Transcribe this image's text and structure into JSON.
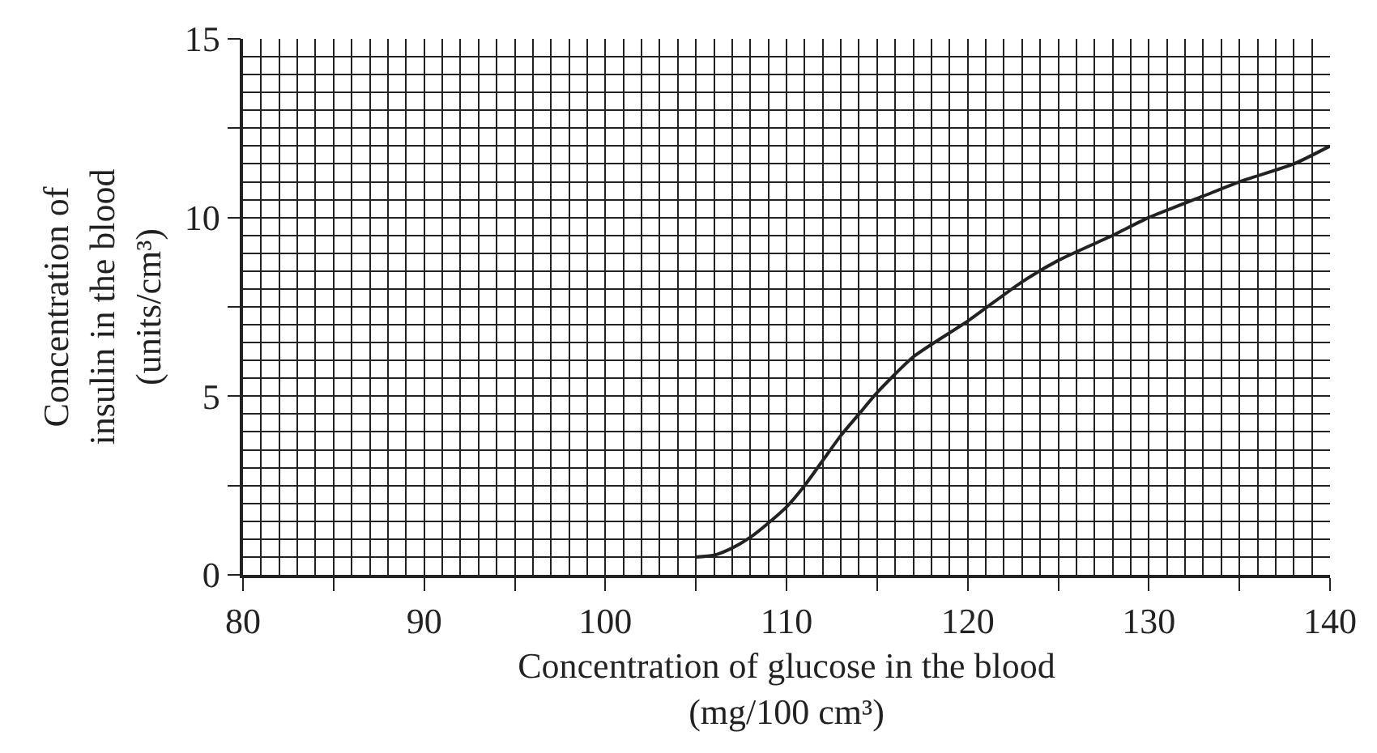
{
  "chart_data": {
    "type": "line",
    "xlabel": "Concentration of glucose in the blood\n(mg/100 cm³)",
    "ylabel": "Concentration of\ninsulin in the blood\n(units/cm³)",
    "x": [
      105,
      106,
      107,
      108,
      109,
      110,
      111,
      112,
      113,
      114,
      115,
      117,
      120,
      123,
      125,
      128,
      130,
      133,
      135,
      138,
      140
    ],
    "series": [
      {
        "color": "#222222",
        "values": [
          0.5,
          0.55,
          0.75,
          1.05,
          1.45,
          1.9,
          2.5,
          3.2,
          3.9,
          4.5,
          5.1,
          6.1,
          7.1,
          8.2,
          8.8,
          9.5,
          10,
          10.6,
          11,
          11.5,
          12
        ]
      }
    ],
    "xlim": [
      80,
      140
    ],
    "xticks": [
      80,
      {
        "value": 85,
        "label": null
      },
      90,
      {
        "value": 95,
        "label": null
      },
      100,
      {
        "value": 105,
        "label": null
      },
      110,
      {
        "value": 115,
        "label": null
      },
      120,
      {
        "value": 125,
        "label": null
      },
      130,
      {
        "value": 135,
        "label": null
      },
      140
    ],
    "ylim": [
      0,
      15
    ],
    "yticks": [
      0,
      {
        "value": 2.5,
        "label": null
      },
      5,
      {
        "value": 7.5,
        "label": null
      },
      10,
      {
        "value": 12.5,
        "label": null
      },
      15
    ],
    "grid": true,
    "marker": "none",
    "line_style": "solid"
  }
}
